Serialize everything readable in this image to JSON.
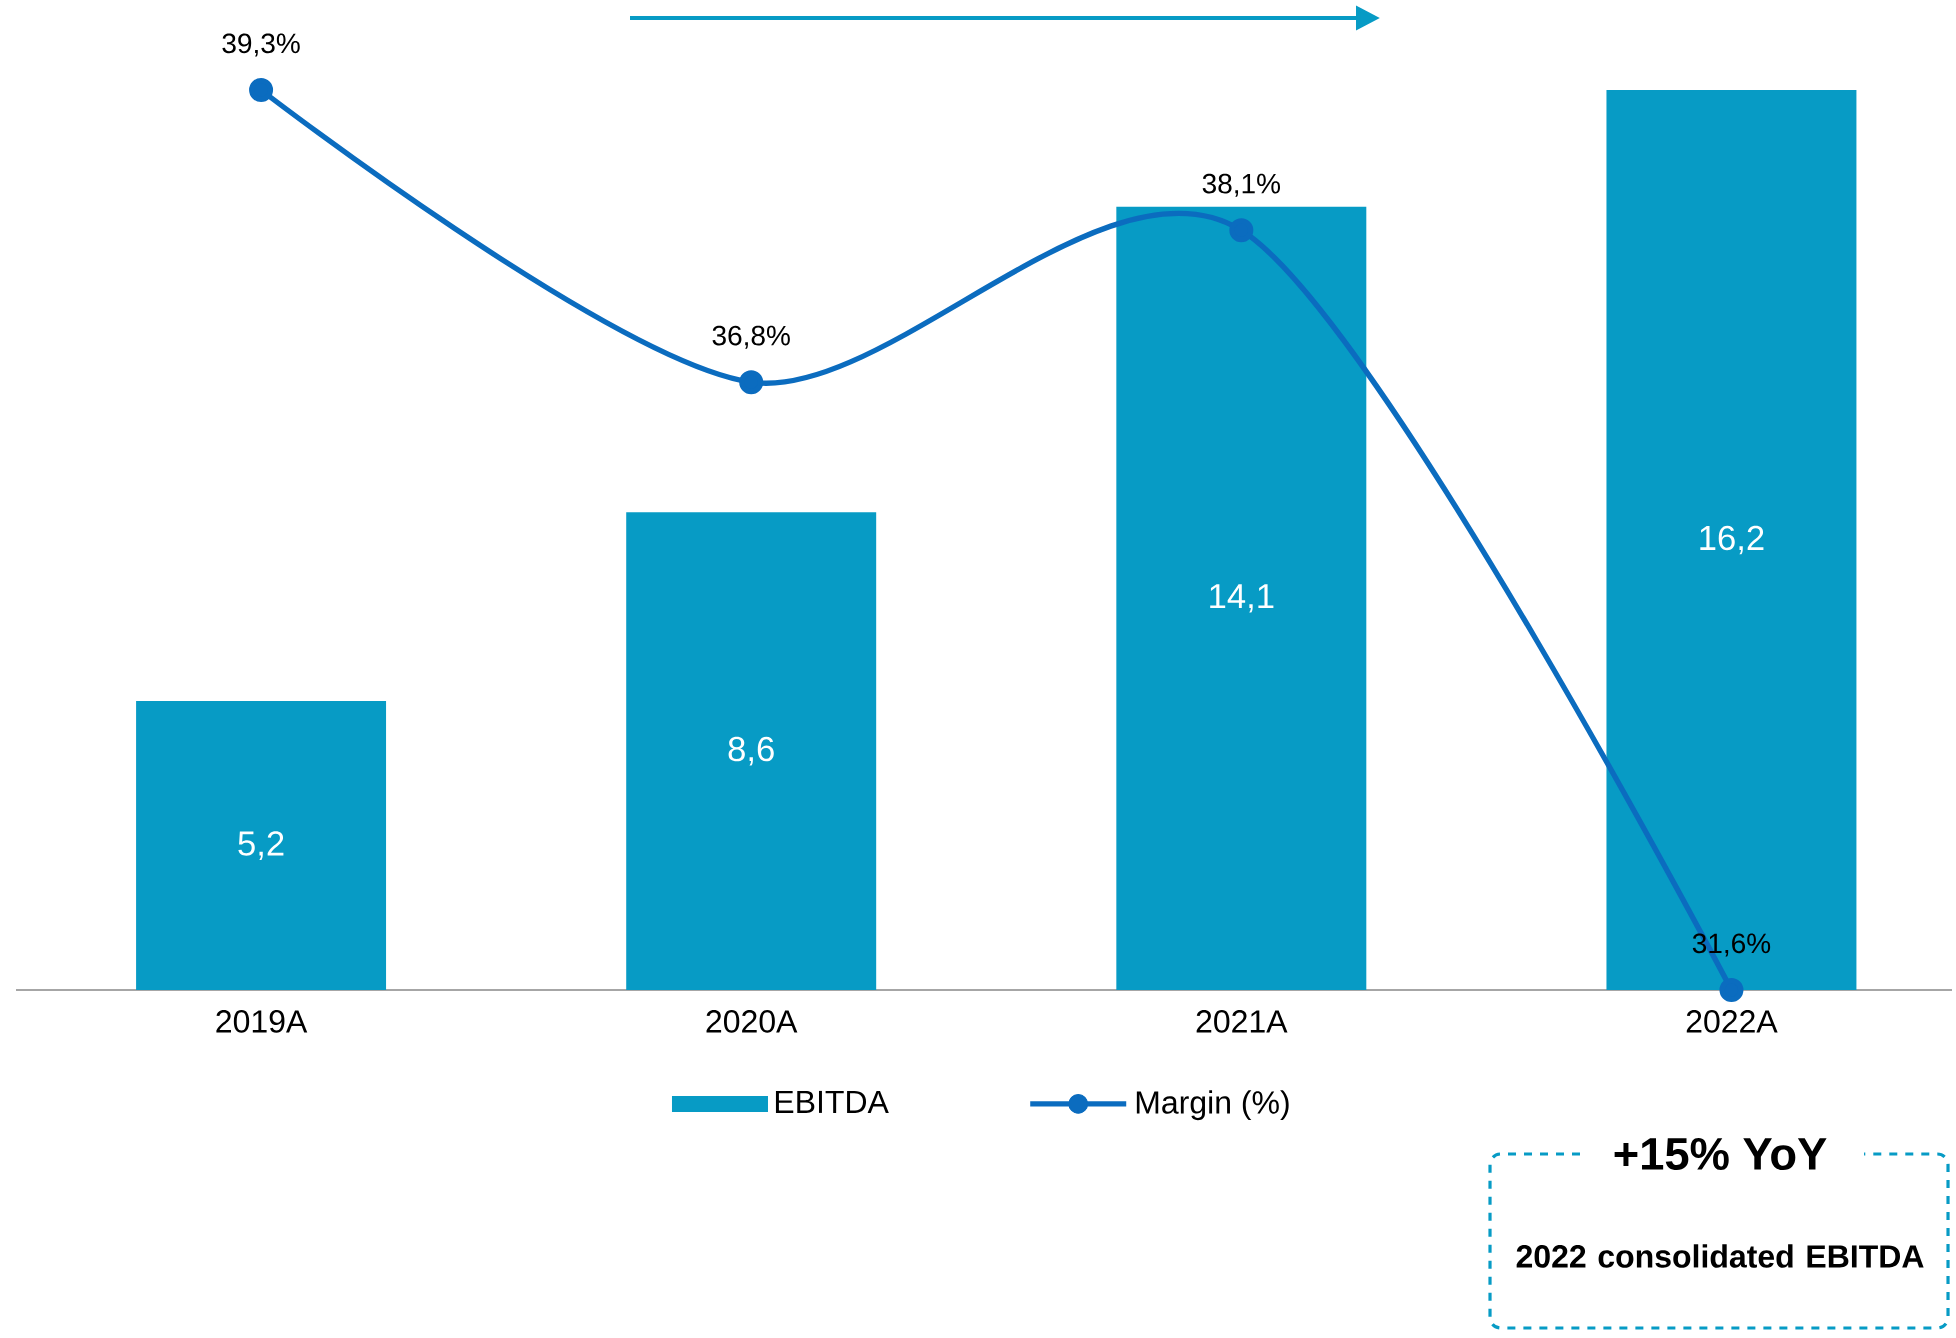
{
  "chart_data": {
    "type": "bar",
    "categories": [
      "2019A",
      "2020A",
      "2021A",
      "2022A"
    ],
    "series": [
      {
        "name": "EBITDA",
        "color": "#079bc5",
        "values": [
          5.2,
          8.6,
          14.1,
          16.2
        ],
        "value_labels": [
          "5,2",
          "8,6",
          "14,1",
          "16,2"
        ]
      },
      {
        "name": "Margin (%)",
        "type": "line",
        "axis": "y2",
        "color": "#0b6cbf",
        "values": [
          39.3,
          36.8,
          38.1,
          31.6
        ],
        "value_labels": [
          "39,3%",
          "36,8%",
          "38,1%",
          "31,6%"
        ]
      }
    ],
    "tick_labels": "x",
    "legend": "bottom",
    "grid": false,
    "marker": "circle",
    "line_style": "solid",
    "annotations": [
      "+15% YoY",
      "2022 consolidated EBITDA"
    ]
  }
}
